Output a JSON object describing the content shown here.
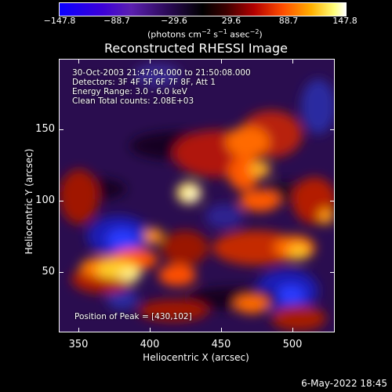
{
  "colorbar": {
    "ticks": [
      "−147.8",
      "−88.7",
      "−29.6",
      "29.6",
      "88.7",
      "147.8"
    ],
    "unit_prefix": "(photons cm",
    "unit_exp1": "−2",
    "unit_mid": " s",
    "unit_exp2": "−1",
    "unit_mid2": " asec",
    "unit_exp3": "−2",
    "unit_suffix": ")"
  },
  "title": "Reconstructed RHESSI Image",
  "info": {
    "line1": "30-Oct-2003 21:47:04.000 to 21:50:08.000",
    "line2": "Detectors: 3F 4F 5F 6F 7F 8F, Att 1",
    "line3": "Energy Range: 3.0 - 6.0 keV",
    "line4": "Clean    Total counts: 2.08E+03",
    "peak": "Position of Peak = [430,102]"
  },
  "axes": {
    "x_title": "Heliocentric X (arcsec)",
    "y_title": "Heliocentric Y (arcsec)",
    "x_ticks": [
      "350",
      "400",
      "450",
      "500"
    ],
    "y_ticks": [
      "150",
      "100",
      "50"
    ]
  },
  "footer_date": "6-May-2022 18:45"
}
